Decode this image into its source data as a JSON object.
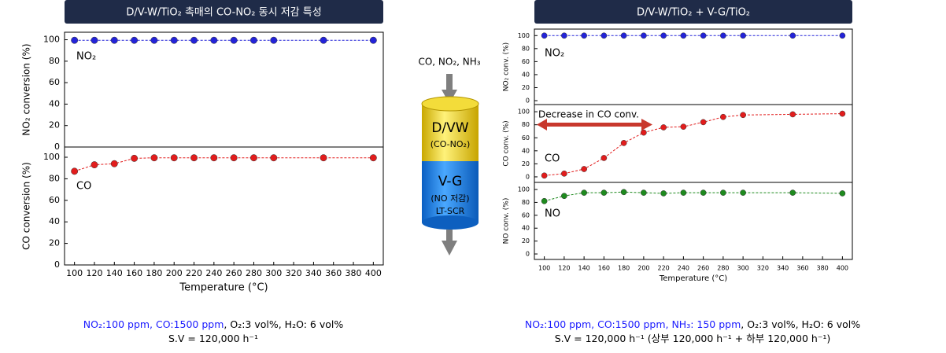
{
  "chart_data": [
    {
      "type": "line",
      "title": "D/V-W/TiO₂ 촉매의 CO-NO₂ 동시 저감 특성",
      "ylabel": "NO₂ conversion (%)",
      "x": [
        100,
        120,
        140,
        160,
        180,
        200,
        220,
        240,
        260,
        280,
        300,
        350,
        400
      ],
      "xlim": [
        90,
        410
      ],
      "series": [
        {
          "name": "NO₂",
          "color": "#2323d8",
          "values": [
            99.5,
            99.5,
            99.5,
            99.5,
            99.5,
            99.5,
            99.5,
            99.5,
            99.5,
            99.5,
            99.5,
            99.5,
            99.5
          ]
        }
      ],
      "ylim": [
        0,
        107
      ],
      "yticks": [
        0,
        20,
        40,
        60,
        80,
        100
      ]
    },
    {
      "type": "line",
      "ylabel": "CO conversion (%)",
      "xlabel": "Temperature (°C)",
      "x": [
        100,
        120,
        140,
        160,
        180,
        200,
        220,
        240,
        260,
        280,
        300,
        350,
        400
      ],
      "xlim": [
        90,
        410
      ],
      "xticks": [
        100,
        120,
        140,
        160,
        180,
        200,
        220,
        240,
        260,
        280,
        300,
        320,
        340,
        360,
        380,
        400
      ],
      "series": [
        {
          "name": "CO",
          "color": "#e21c1c",
          "values": [
            87,
            93,
            94,
            99,
            99.5,
            99.5,
            99.5,
            99.5,
            99.5,
            99.5,
            99.5,
            99.5,
            99.5
          ]
        }
      ],
      "ylim": [
        0,
        109.5
      ],
      "yticks": [
        0,
        20,
        40,
        60,
        80,
        100
      ]
    },
    {
      "type": "line",
      "title": "D/V-W/TiO₂ + V-G/TiO₂",
      "ylabel": "NO₂ conv. (%)",
      "x": [
        100,
        120,
        140,
        160,
        180,
        200,
        220,
        240,
        260,
        280,
        300,
        350,
        400
      ],
      "xlim": [
        90,
        410
      ],
      "series": [
        {
          "name": "NO₂",
          "color": "#2323d8",
          "values": [
            100,
            100,
            100,
            100,
            100,
            100,
            100,
            100,
            100,
            100,
            100,
            100,
            100
          ]
        }
      ],
      "ylim": [
        -6,
        110
      ],
      "yticks": [
        0,
        20,
        40,
        60,
        80,
        100
      ]
    },
    {
      "type": "line",
      "ylabel": "CO conv. (%)",
      "annotation": "Decrease in CO conv.",
      "x": [
        100,
        120,
        140,
        160,
        180,
        200,
        220,
        240,
        260,
        280,
        300,
        350,
        400
      ],
      "xlim": [
        90,
        410
      ],
      "series": [
        {
          "name": "CO",
          "color": "#e21c1c",
          "values": [
            2,
            5,
            12,
            29,
            52,
            68,
            76,
            77,
            84,
            92,
            95,
            96,
            97
          ]
        }
      ],
      "ylim": [
        -8.5,
        111
      ],
      "yticks": [
        0,
        20,
        40,
        60,
        80,
        100
      ]
    },
    {
      "type": "line",
      "ylabel": "NO conv. (%)",
      "xlabel": "Temperature (°C)",
      "x": [
        100,
        120,
        140,
        160,
        180,
        200,
        220,
        240,
        260,
        280,
        300,
        350,
        400
      ],
      "xlim": [
        90,
        410
      ],
      "xticks": [
        100,
        120,
        140,
        160,
        180,
        200,
        220,
        240,
        260,
        280,
        300,
        320,
        340,
        360,
        380,
        400
      ],
      "series": [
        {
          "name": "NO",
          "color": "#1e8a1e",
          "values": [
            82,
            90,
            95,
            95,
            96,
            95,
            94,
            95,
            95,
            95,
            95,
            95,
            94
          ]
        }
      ],
      "ylim": [
        -8.5,
        111
      ],
      "yticks": [
        0,
        20,
        40,
        60,
        80,
        100
      ]
    }
  ],
  "notes": [
    [
      [
        {
          "text": "NO₂:100 ppm, CO:1500 ppm",
          "color": "#1a1aff"
        },
        {
          "text": ", O₂:3 vol%, H₂O: 6 vol%",
          "color": "#000000"
        }
      ],
      [
        {
          "text": "S.V = 120,000 h⁻¹",
          "color": "#000000"
        }
      ]
    ],
    [
      [
        {
          "text": "NO₂:100 ppm, CO:1500 ppm, NH₃: 150 ppm",
          "color": "#1a1aff"
        },
        {
          "text": ", O₂:3 vol%, H₂O: 6 vol%",
          "color": "#000000"
        }
      ],
      [
        {
          "text": "S.V = 120,000 h⁻¹ (상부 120,000 h⁻¹ + 하부 120,000 h⁻¹)",
          "color": "#000000"
        }
      ]
    ]
  ],
  "diagram": {
    "input": "CO, NO₂, NH₃",
    "upper_label": "D/VW",
    "upper_sub": "(CO-NO₂)",
    "lower_label": "V-G",
    "lower_sub": "(NO 저감)",
    "lower_sub2": "LT-SCR"
  }
}
